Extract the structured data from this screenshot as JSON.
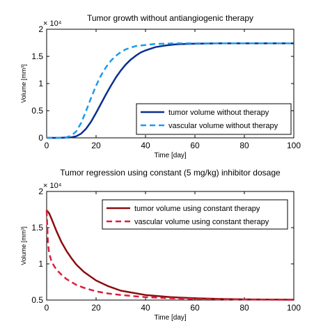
{
  "chart_data": [
    {
      "type": "line",
      "title": "Tumor growth without antiangiogenic therapy",
      "xlabel": "Time [day]",
      "ylabel": "Volume [mm³]",
      "y_exponent": "× 10⁴",
      "xlim": [
        0,
        100
      ],
      "ylim": [
        0,
        2
      ],
      "xticks": [
        "0",
        "20",
        "40",
        "60",
        "80",
        "100"
      ],
      "yticks": [
        "0",
        "0.5",
        "1",
        "1.5",
        "2"
      ],
      "grid": false,
      "legend_position": "bottom-right",
      "series": [
        {
          "name": "tumor volume without therapy",
          "color": "#0b2f8f",
          "dash": "solid",
          "x": [
            0,
            5,
            10,
            12,
            14,
            16,
            18,
            20,
            22,
            24,
            26,
            28,
            30,
            32,
            34,
            36,
            38,
            40,
            44,
            48,
            52,
            56,
            60,
            70,
            80,
            90,
            100
          ],
          "y": [
            0,
            0,
            0.01,
            0.03,
            0.08,
            0.17,
            0.3,
            0.46,
            0.63,
            0.8,
            0.96,
            1.11,
            1.24,
            1.35,
            1.44,
            1.51,
            1.57,
            1.61,
            1.67,
            1.7,
            1.72,
            1.73,
            1.735,
            1.74,
            1.74,
            1.74,
            1.74
          ]
        },
        {
          "name": "vascular volume without therapy",
          "color": "#1a9bf0",
          "dash": "dashed",
          "x": [
            0,
            5,
            8,
            10,
            12,
            14,
            16,
            18,
            20,
            22,
            24,
            26,
            28,
            30,
            32,
            34,
            36,
            38,
            40,
            44,
            48,
            52,
            56,
            60,
            70,
            80,
            90,
            100
          ],
          "y": [
            0,
            0,
            0.01,
            0.04,
            0.12,
            0.28,
            0.5,
            0.74,
            0.96,
            1.15,
            1.3,
            1.42,
            1.51,
            1.58,
            1.63,
            1.66,
            1.69,
            1.7,
            1.71,
            1.73,
            1.735,
            1.74,
            1.74,
            1.74,
            1.74,
            1.74,
            1.74,
            1.74
          ]
        }
      ]
    },
    {
      "type": "line",
      "title": "Tumor regression using constant (5 mg/kg) inhibitor dosage",
      "xlabel": "Time [day]",
      "ylabel": "Volume [mm³]",
      "y_exponent": "× 10⁴",
      "xlim": [
        0,
        100
      ],
      "ylim": [
        0.5,
        2
      ],
      "xticks": [
        "0",
        "20",
        "40",
        "60",
        "80",
        "100"
      ],
      "yticks": [
        "0.5",
        "1",
        "1.5",
        "2"
      ],
      "grid": false,
      "legend_position": "top-right",
      "series": [
        {
          "name": "tumor volume using constant therapy",
          "color": "#8b0d0d",
          "dash": "solid",
          "x": [
            0,
            1,
            2,
            4,
            6,
            8,
            10,
            12,
            15,
            20,
            25,
            30,
            35,
            40,
            50,
            60,
            70,
            80,
            90,
            100
          ],
          "y": [
            1.74,
            1.7,
            1.62,
            1.45,
            1.3,
            1.18,
            1.08,
            0.99,
            0.89,
            0.77,
            0.69,
            0.63,
            0.6,
            0.57,
            0.54,
            0.525,
            0.515,
            0.51,
            0.507,
            0.505
          ]
        },
        {
          "name": "vascular volume using constant therapy",
          "color": "#d81f3e",
          "dash": "dashed",
          "x": [
            0,
            0.5,
            1,
            2,
            3,
            4,
            6,
            8,
            10,
            12,
            15,
            20,
            25,
            30,
            35,
            40,
            50,
            60,
            70,
            80,
            90,
            100
          ],
          "y": [
            1.74,
            1.3,
            1.15,
            1.03,
            0.97,
            0.92,
            0.85,
            0.79,
            0.75,
            0.71,
            0.67,
            0.62,
            0.59,
            0.57,
            0.555,
            0.54,
            0.525,
            0.515,
            0.51,
            0.507,
            0.505,
            0.505
          ]
        }
      ]
    }
  ]
}
